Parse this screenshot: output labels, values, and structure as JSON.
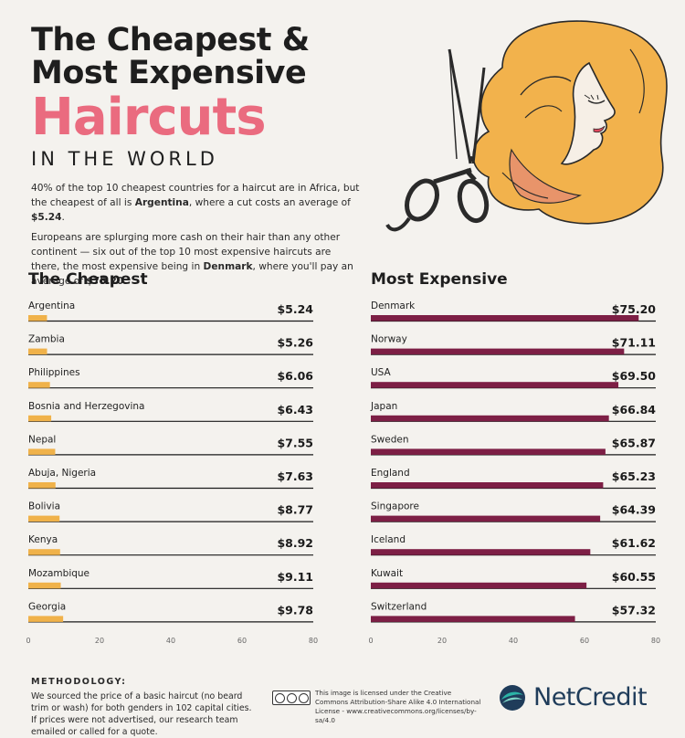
{
  "header": {
    "title_line1": "The Cheapest &",
    "title_line2": "Most Expensive",
    "title_big": "Haircuts",
    "title_sub": "IN THE WORLD"
  },
  "intro": {
    "p1_a": "40% of the top 10 cheapest countries for a haircut are in Africa, but the cheapest of all is ",
    "p1_b": "Argentina",
    "p1_c": ", where a cut costs an average of ",
    "p1_d": "$5.24",
    "p1_e": ".",
    "p2_a": "Europeans are splurging more cash on their hair than any other continent — six out of the top 10 most expensive haircuts are there, the most expensive being in ",
    "p2_b": "Denmark",
    "p2_c": ", where you'll pay an average of ",
    "p2_d": "$75.20",
    "p2_e": "."
  },
  "chart_data": [
    {
      "type": "bar",
      "title": "The Cheapest",
      "categories": [
        "Argentina",
        "Zambia",
        "Philippines",
        "Bosnia and Herzegovina",
        "Nepal",
        "Abuja, Nigeria",
        "Bolivia",
        "Kenya",
        "Mozambique",
        "Georgia"
      ],
      "values": [
        5.24,
        5.26,
        6.06,
        6.43,
        7.55,
        7.63,
        8.77,
        8.92,
        9.11,
        9.78
      ],
      "labels": [
        "$5.24",
        "$5.26",
        "$6.06",
        "$6.43",
        "$7.55",
        "$7.63",
        "$8.77",
        "$8.92",
        "$9.11",
        "$9.78"
      ],
      "xlim": [
        0,
        80
      ],
      "ticks": [
        "0",
        "20",
        "40",
        "60",
        "80"
      ],
      "color": "#f0b24a"
    },
    {
      "type": "bar",
      "title": "Most Expensive",
      "categories": [
        "Denmark",
        "Norway",
        "USA",
        "Japan",
        "Sweden",
        "England",
        "Singapore",
        "Iceland",
        "Kuwait",
        "Switzerland"
      ],
      "values": [
        75.2,
        71.11,
        69.5,
        66.84,
        65.87,
        65.23,
        64.39,
        61.62,
        60.55,
        57.32
      ],
      "labels": [
        "$75.20",
        "$71.11",
        "$69.50",
        "$66.84",
        "$65.87",
        "$65.23",
        "$64.39",
        "$61.62",
        "$60.55",
        "$57.32"
      ],
      "xlim": [
        0,
        80
      ],
      "ticks": [
        "0",
        "20",
        "40",
        "60",
        "80"
      ],
      "color": "#7d1f45"
    }
  ],
  "methodology": {
    "heading": "METHODOLOGY:",
    "text": "We sourced the price of a basic haircut (no beard trim or wash) for both genders in 102 capital cities. If prices were not advertised, our research team emailed or called for a quote."
  },
  "license": {
    "text": "This image is licensed under the Creative Commons Attribution-Share Alike 4.0 International License - www.creativecommons.org/licenses/by-sa/4.0"
  },
  "brand": {
    "name": "NetCredit",
    "colors": {
      "teal": "#2bb3a6",
      "navy": "#1f3c5a"
    }
  },
  "colors": {
    "title_pink": "#ea6b7f",
    "hair": "#f2b24c",
    "hair_dark": "#e8946a"
  }
}
